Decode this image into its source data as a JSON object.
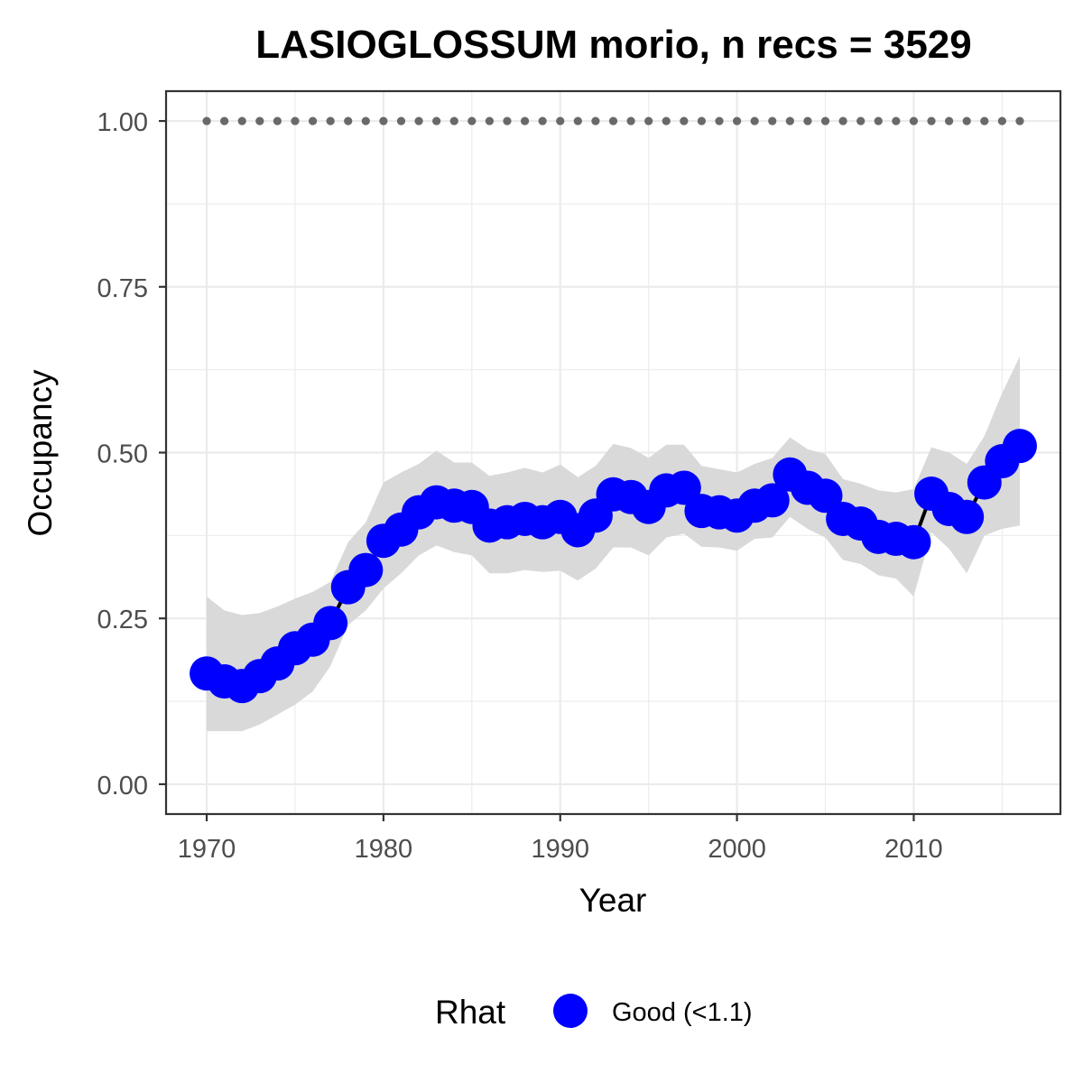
{
  "chart_data": {
    "type": "line",
    "title": "LASIOGLOSSUM morio, n recs = 3529",
    "xlabel": "Year",
    "ylabel": "Occupancy",
    "xlim": [
      1967.7,
      2018.3
    ],
    "ylim": [
      -0.045,
      1.045
    ],
    "x_ticks": [
      1970,
      1980,
      1990,
      2000,
      2010
    ],
    "x_tick_labels": [
      "1970",
      "1980",
      "1990",
      "2000",
      "2010"
    ],
    "y_ticks": [
      0,
      0.25,
      0.5,
      0.75,
      1.0
    ],
    "y_tick_labels": [
      "0.00",
      "0.25",
      "0.50",
      "0.75",
      "1.00"
    ],
    "grid": true,
    "legend": {
      "title": "Rhat",
      "position": "bottom",
      "entries": [
        {
          "label": "Good (<1.1)",
          "color": "#0000ff"
        }
      ]
    },
    "colors": {
      "points": "#0000ff",
      "line": "#000000",
      "ribbon": "#d9d9d9",
      "reference_points": "#696969"
    },
    "x": [
      1970,
      1971,
      1972,
      1973,
      1974,
      1975,
      1976,
      1977,
      1978,
      1979,
      1980,
      1981,
      1982,
      1983,
      1984,
      1985,
      1986,
      1987,
      1988,
      1989,
      1990,
      1991,
      1992,
      1993,
      1994,
      1995,
      1996,
      1997,
      1998,
      1999,
      2000,
      2001,
      2002,
      2003,
      2004,
      2005,
      2006,
      2007,
      2008,
      2009,
      2010,
      2011,
      2012,
      2013,
      2014,
      2015,
      2016
    ],
    "series": [
      {
        "values": [
          0.167,
          0.155,
          0.148,
          0.163,
          0.182,
          0.205,
          0.218,
          0.243,
          0.297,
          0.323,
          0.367,
          0.384,
          0.41,
          0.425,
          0.42,
          0.418,
          0.39,
          0.395,
          0.4,
          0.395,
          0.403,
          0.383,
          0.405,
          0.437,
          0.433,
          0.418,
          0.443,
          0.447,
          0.412,
          0.41,
          0.405,
          0.42,
          0.428,
          0.467,
          0.447,
          0.435,
          0.4,
          0.393,
          0.373,
          0.37,
          0.365,
          0.438,
          0.415,
          0.403,
          0.455,
          0.487,
          0.51
        ],
        "lower": [
          0.08,
          0.08,
          0.08,
          0.09,
          0.105,
          0.12,
          0.14,
          0.178,
          0.24,
          0.262,
          0.295,
          0.318,
          0.345,
          0.36,
          0.35,
          0.345,
          0.318,
          0.318,
          0.323,
          0.32,
          0.322,
          0.307,
          0.325,
          0.357,
          0.357,
          0.345,
          0.372,
          0.378,
          0.358,
          0.357,
          0.352,
          0.37,
          0.372,
          0.403,
          0.385,
          0.372,
          0.338,
          0.332,
          0.315,
          0.31,
          0.283,
          0.38,
          0.355,
          0.318,
          0.375,
          0.385,
          0.39
        ],
        "upper": [
          0.283,
          0.262,
          0.255,
          0.258,
          0.268,
          0.28,
          0.29,
          0.305,
          0.365,
          0.395,
          0.455,
          0.47,
          0.483,
          0.503,
          0.485,
          0.485,
          0.465,
          0.47,
          0.477,
          0.47,
          0.482,
          0.463,
          0.48,
          0.513,
          0.507,
          0.492,
          0.512,
          0.512,
          0.48,
          0.475,
          0.47,
          0.483,
          0.492,
          0.523,
          0.505,
          0.498,
          0.46,
          0.453,
          0.443,
          0.44,
          0.445,
          0.508,
          0.5,
          0.483,
          0.525,
          0.59,
          0.645
        ]
      },
      {
        "values": [
          1,
          1,
          1,
          1,
          1,
          1,
          1,
          1,
          1,
          1,
          1,
          1,
          1,
          1,
          1,
          1,
          1,
          1,
          1,
          1,
          1,
          1,
          1,
          1,
          1,
          1,
          1,
          1,
          1,
          1,
          1,
          1,
          1,
          1,
          1,
          1,
          1,
          1,
          1,
          1,
          1,
          1,
          1,
          1,
          1,
          1,
          1
        ]
      }
    ]
  }
}
